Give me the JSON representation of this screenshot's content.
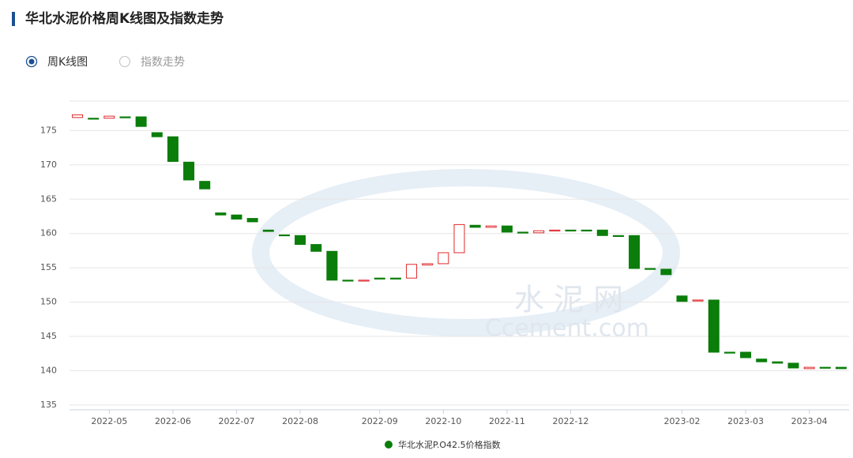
{
  "header": {
    "title": "华北水泥价格周K线图及指数走势"
  },
  "tabs": {
    "options": [
      "周K线图",
      "指数走势"
    ],
    "selected": 0
  },
  "watermark": [
    "水 泥 网",
    "Ccement.com"
  ],
  "chart_data": {
    "type": "candlestick",
    "name": "华北水泥P.O42.5价格指数",
    "up_color": "#e0282b",
    "down_color": "#0a7d0a",
    "categories": [
      null,
      null,
      "2022-05",
      null,
      null,
      null,
      "2022-06",
      null,
      null,
      null,
      "2022-07",
      null,
      null,
      null,
      "2022-08",
      null,
      null,
      null,
      null,
      "2022-09",
      null,
      null,
      null,
      "2022-10",
      null,
      null,
      null,
      "2022-11",
      null,
      null,
      null,
      "2022-12",
      null,
      null,
      null,
      null,
      null,
      null,
      "2023-02",
      null,
      null,
      null,
      "2023-03",
      null,
      null,
      null,
      "2023-04",
      null,
      null
    ],
    "open": [
      176.9,
      176.8,
      176.8,
      177.0,
      177.0,
      174.7,
      174.1,
      170.4,
      167.6,
      163.0,
      162.7,
      162.2,
      160.5,
      159.8,
      159.7,
      158.4,
      157.4,
      153.2,
      153.1,
      153.5,
      153.5,
      153.5,
      155.4,
      155.6,
      157.2,
      161.2,
      160.9,
      161.1,
      160.2,
      160.1,
      160.4,
      160.5,
      160.5,
      160.5,
      159.7,
      159.7,
      154.9,
      154.8,
      150.9,
      150.2,
      150.3,
      142.7,
      142.7,
      141.7,
      141.3,
      141.1,
      140.3,
      140.5,
      140.5
    ],
    "close": [
      177.3,
      176.7,
      177.1,
      176.9,
      175.6,
      174.1,
      170.5,
      167.8,
      166.5,
      162.7,
      162.1,
      161.7,
      160.3,
      159.7,
      158.4,
      157.4,
      153.2,
      153.1,
      153.2,
      153.4,
      153.4,
      155.5,
      155.6,
      157.2,
      161.3,
      160.9,
      161.1,
      160.2,
      160.1,
      160.4,
      160.5,
      160.4,
      160.4,
      159.7,
      159.6,
      154.9,
      154.8,
      154.0,
      150.1,
      150.3,
      142.7,
      142.6,
      141.9,
      141.3,
      141.1,
      140.4,
      140.5,
      140.4,
      140.3
    ],
    "ylim": [
      134.3,
      179.3
    ],
    "yticks": [
      135,
      140,
      145,
      150,
      155,
      160,
      165,
      170,
      175
    ],
    "grid": true
  }
}
